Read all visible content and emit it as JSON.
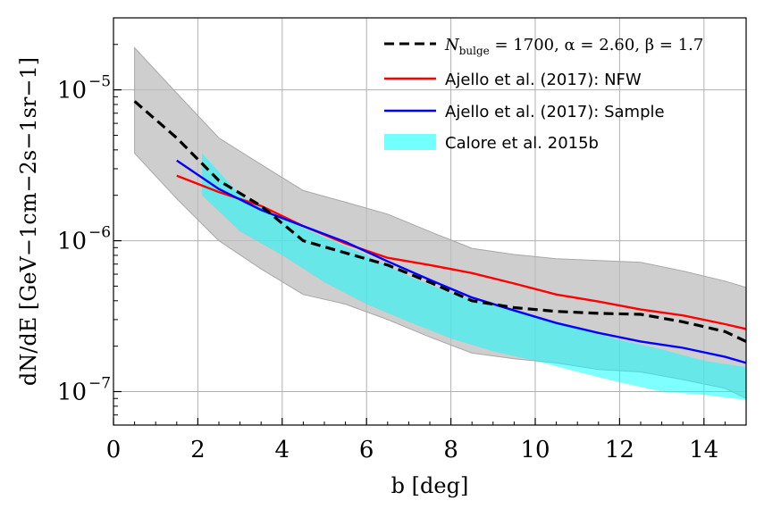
{
  "chart_data": {
    "type": "line",
    "xlabel": "b [deg]",
    "ylabel": "dN/dE [GeV−1cm−2s−1sr−1]",
    "xlim": [
      0,
      15
    ],
    "ylim": [
      6e-08,
      3e-05
    ],
    "yscale": "log",
    "grid": true,
    "legend_position": "top-right",
    "x_ticks": [
      "0",
      "2",
      "4",
      "6",
      "8",
      "10",
      "12",
      "14"
    ],
    "y_ticks": [
      {
        "base": "10",
        "exp": "−5",
        "value": 1e-05
      },
      {
        "base": "10",
        "exp": "−6",
        "value": 1e-06
      },
      {
        "base": "10",
        "exp": "−7",
        "value": 1e-07
      }
    ],
    "legend": {
      "main_label": "N_bulge = 1700, α = 2.60, β = 1.7",
      "main_label_parts": {
        "N": "N",
        "sub": "bulge",
        "rest": " = 1700, α = 2.60, β = 1.7"
      },
      "ajello_nfw": "Ajello et al. (2017): NFW",
      "ajello_sample": "Ajello et al. (2017): Sample",
      "calore": "Calore et al. 2015b"
    },
    "series": [
      {
        "name": "N_bulge = 1700, α = 2.60, β = 1.7",
        "style": "dashed",
        "color": "#000000",
        "x": [
          0.5,
          1.5,
          2.5,
          3.5,
          4.5,
          5.5,
          6.5,
          7.5,
          8.5,
          9.5,
          10.5,
          11.5,
          12.5,
          13.5,
          14.5,
          15
        ],
        "y": [
          8.4e-06,
          4.8e-06,
          2.5e-06,
          1.7e-06,
          1e-06,
          8.3e-07,
          6.9e-07,
          5.3e-07,
          4e-07,
          3.6e-07,
          3.4e-07,
          3.3e-07,
          3.25e-07,
          2.9e-07,
          2.5e-07,
          2.15e-07
        ],
        "band": {
          "name": "N_bulge uncertainty band",
          "color": "#bebebe",
          "x": [
            0.5,
            1.5,
            2.5,
            3.5,
            4.5,
            5.5,
            6.5,
            7.5,
            8.5,
            9.5,
            10.5,
            11.5,
            12.5,
            13.5,
            14.5,
            15
          ],
          "upper": [
            1.9e-05,
            9.5e-06,
            4.8e-06,
            3.2e-06,
            2.15e-06,
            1.8e-06,
            1.5e-06,
            1.15e-06,
            8.9e-07,
            8.1e-07,
            7.6e-07,
            7.4e-07,
            7.2e-07,
            6.3e-07,
            5.4e-07,
            4.9e-07
          ],
          "lower": [
            3.8e-06,
            1.9e-06,
            1e-06,
            6.5e-07,
            4.4e-07,
            3.8e-07,
            3e-07,
            2.3e-07,
            1.8e-07,
            1.65e-07,
            1.55e-07,
            1.4e-07,
            1.35e-07,
            1.2e-07,
            1.05e-07,
            9e-08
          ]
        }
      },
      {
        "name": "Ajello et al. (2017): NFW",
        "style": "solid",
        "color": "#ff0000",
        "x": [
          1.5,
          2.5,
          3.5,
          4.5,
          5.5,
          6.5,
          7.5,
          8.5,
          9.5,
          10.5,
          11.5,
          12.5,
          13.5,
          14.5,
          15
        ],
        "y": [
          2.7e-06,
          2.1e-06,
          1.7e-06,
          1.25e-06,
          9.6e-07,
          7.7e-07,
          6.9e-07,
          6.1e-07,
          5.2e-07,
          4.4e-07,
          3.95e-07,
          3.5e-07,
          3.2e-07,
          2.8e-07,
          2.6e-07
        ]
      },
      {
        "name": "Ajello et al. (2017): Sample",
        "style": "solid",
        "color": "#0000ff",
        "x": [
          1.5,
          2.5,
          3.5,
          4.5,
          5.5,
          6.5,
          7.5,
          8.5,
          9.5,
          10.5,
          11.5,
          12.5,
          13.5,
          14.5,
          15
        ],
        "y": [
          3.4e-06,
          2.2e-06,
          1.6e-06,
          1.25e-06,
          9.8e-07,
          7.3e-07,
          5.5e-07,
          4.2e-07,
          3.45e-07,
          2.85e-07,
          2.45e-07,
          2.15e-07,
          1.95e-07,
          1.7e-07,
          1.55e-07
        ]
      },
      {
        "name": "Calore et al. 2015b",
        "style": "band",
        "color": "#00ffff",
        "x": [
          2.1,
          3.0,
          4.0,
          5.0,
          6.0,
          7.0,
          8.0,
          9.0,
          10.0,
          11.0,
          12.0,
          13.0,
          14.0,
          15.0
        ],
        "upper": [
          3.8e-06,
          2e-06,
          1.4e-06,
          1.05e-06,
          8e-07,
          5.8e-07,
          4.5e-07,
          3.7e-07,
          3.1e-07,
          2.6e-07,
          2.2e-07,
          1.9e-07,
          1.6e-07,
          1.45e-07
        ],
        "lower": [
          2e-06,
          1.15e-06,
          8e-07,
          5.3e-07,
          3.8e-07,
          2.9e-07,
          2.25e-07,
          1.85e-07,
          1.6e-07,
          1.35e-07,
          1.15e-07,
          1e-07,
          9.5e-08,
          8.8e-08
        ]
      }
    ]
  },
  "colors": {
    "grid": "#b0b0b0",
    "gray_band": "#bebebe",
    "cyan_band": "#00ffff",
    "nfw": "#ff0000",
    "sample": "#0000ff",
    "bulge": "#000000"
  }
}
